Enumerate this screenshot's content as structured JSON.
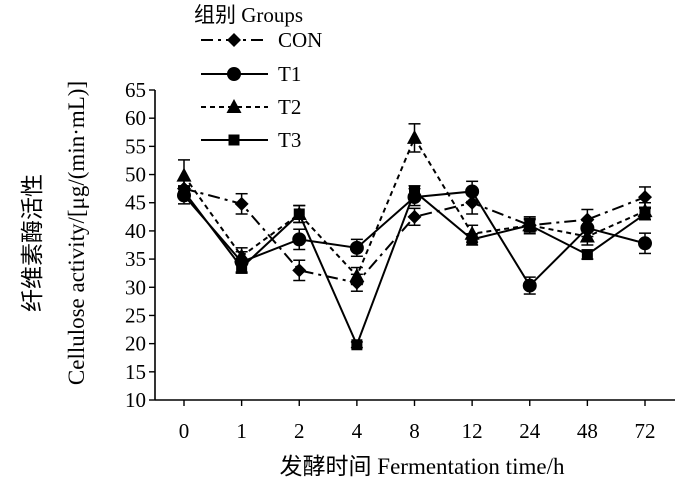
{
  "chart_data": {
    "type": "line",
    "categories": [
      "0",
      "1",
      "2",
      "4",
      "8",
      "12",
      "24",
      "48",
      "72"
    ],
    "xlabel": "发酵时间 Fermentation time/h",
    "ylabel_cn": "纤维素酶活性",
    "ylabel_en": "Cellulose activity/[μg/(min·mL)]",
    "ylim": [
      10,
      65
    ],
    "yticks": [
      10,
      15,
      20,
      25,
      30,
      35,
      40,
      45,
      50,
      55,
      60,
      65
    ],
    "grid": false,
    "legend_title": "组别 Groups",
    "legend_position": "top-left",
    "series": [
      {
        "name": "CON",
        "marker": "diamond",
        "line_style": "dash-dot",
        "values": [
          47.5,
          44.8,
          33.0,
          30.8,
          42.5,
          45.0,
          41.0,
          42.0,
          46.0
        ],
        "errors": [
          1.5,
          1.8,
          1.8,
          1.5,
          1.5,
          2.0,
          1.2,
          1.8,
          1.8
        ]
      },
      {
        "name": "T1",
        "marker": "circle",
        "line_style": "solid",
        "values": [
          46.3,
          34.5,
          38.5,
          37.0,
          46.0,
          47.0,
          30.3,
          40.5,
          37.8
        ],
        "errors": [
          1.5,
          1.8,
          1.8,
          1.5,
          1.5,
          1.8,
          1.5,
          1.5,
          1.8
        ]
      },
      {
        "name": "T2",
        "marker": "triangle",
        "line_style": "dashed",
        "values": [
          49.8,
          35.5,
          43.0,
          32.0,
          56.5,
          39.5,
          41.0,
          39.0,
          43.5
        ],
        "errors": [
          2.8,
          1.5,
          1.5,
          1.5,
          2.5,
          1.5,
          1.5,
          1.5,
          1.5
        ]
      },
      {
        "name": "T3",
        "marker": "square",
        "line_style": "solid",
        "values": [
          47.0,
          33.5,
          43.0,
          19.8,
          47.0,
          38.5,
          41.0,
          35.8,
          43.0
        ],
        "errors": [
          1.0,
          1.0,
          1.5,
          0.5,
          1.0,
          1.0,
          1.0,
          0.8,
          1.0
        ]
      }
    ]
  }
}
